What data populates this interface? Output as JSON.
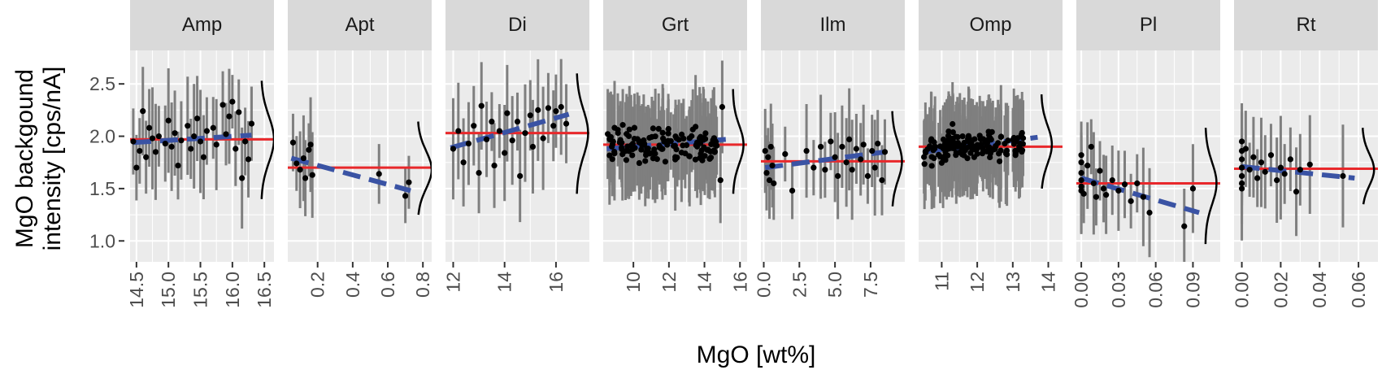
{
  "chart_data": {
    "type": "scatter",
    "ylabel_lines": [
      "MgO backgound",
      "intensity [cps/nA]"
    ],
    "xlabel": "MgO [wt%]",
    "ylim": [
      0.8,
      2.82
    ],
    "yticks": [
      "1.0",
      "1.5",
      "2.0",
      "2.5"
    ],
    "ytick_values": [
      1.0,
      1.5,
      2.0,
      2.5
    ],
    "colors": {
      "points": "#000000",
      "errorbars": "#7f7f7f",
      "mean_line": "#e8282b",
      "trend_line": "#3a53a4",
      "density": "#000000",
      "panel_bg": "#ebebeb",
      "strip_bg": "#d9d9d9",
      "grid": "#ffffff"
    },
    "facets": [
      {
        "name": "Amp",
        "xlim": [
          14.4,
          16.65
        ],
        "xticks": [
          "14.5",
          "15.0",
          "15.5",
          "16.0",
          "16.5"
        ],
        "xtick_values": [
          14.5,
          15.0,
          15.5,
          16.0,
          16.5
        ],
        "mean": 1.97,
        "trend": [
          [
            14.45,
            1.94
          ],
          [
            16.3,
            2.01
          ]
        ],
        "density": {
          "x": 16.45,
          "mu": 1.97,
          "sd": 0.22,
          "w": 0.2,
          "y0": 1.4,
          "y1": 2.53
        },
        "points": [
          [
            14.45,
            1.95
          ],
          [
            14.5,
            1.7
          ],
          [
            14.55,
            1.86
          ],
          [
            14.6,
            2.24
          ],
          [
            14.65,
            1.8
          ],
          [
            14.7,
            2.08
          ],
          [
            14.75,
            1.98
          ],
          [
            14.8,
            1.85
          ],
          [
            14.85,
            2.0
          ],
          [
            14.95,
            1.93
          ],
          [
            15.0,
            2.15
          ],
          [
            15.05,
            1.9
          ],
          [
            15.1,
            2.03
          ],
          [
            15.15,
            1.72
          ],
          [
            15.2,
            1.96
          ],
          [
            15.3,
            2.1
          ],
          [
            15.35,
            1.88
          ],
          [
            15.4,
            2.0
          ],
          [
            15.45,
            2.17
          ],
          [
            15.5,
            1.95
          ],
          [
            15.55,
            1.8
          ],
          [
            15.6,
            2.05
          ],
          [
            15.7,
            2.08
          ],
          [
            15.75,
            1.92
          ],
          [
            15.85,
            2.3
          ],
          [
            15.9,
            2.02
          ],
          [
            15.95,
            2.19
          ],
          [
            16.0,
            2.33
          ],
          [
            16.05,
            1.88
          ],
          [
            16.1,
            2.23
          ],
          [
            16.15,
            1.6
          ],
          [
            16.2,
            1.95
          ],
          [
            16.25,
            1.78
          ],
          [
            16.3,
            2.12
          ]
        ]
      },
      {
        "name": "Apt",
        "xlim": [
          0.03,
          0.85
        ],
        "xticks": [
          "0.2",
          "0.4",
          "0.6",
          "0.8"
        ],
        "xtick_values": [
          0.2,
          0.4,
          0.6,
          0.8
        ],
        "mean": 1.7,
        "trend": [
          [
            0.05,
            1.79
          ],
          [
            0.73,
            1.48
          ]
        ],
        "density": {
          "x": 0.77,
          "mu": 1.68,
          "sd": 0.18,
          "w": 0.08,
          "y0": 1.25,
          "y1": 2.14
        },
        "points": [
          [
            0.06,
            1.94
          ],
          [
            0.08,
            1.74
          ],
          [
            0.1,
            1.68
          ],
          [
            0.12,
            1.79
          ],
          [
            0.13,
            1.6
          ],
          [
            0.15,
            1.87
          ],
          [
            0.16,
            1.92
          ],
          [
            0.17,
            1.63
          ],
          [
            0.55,
            1.64
          ],
          [
            0.7,
            1.43
          ],
          [
            0.72,
            1.56
          ]
        ]
      },
      {
        "name": "Di",
        "xlim": [
          11.7,
          17.3
        ],
        "xticks": [
          "12",
          "14",
          "16"
        ],
        "xtick_values": [
          12,
          14,
          16
        ],
        "mean": 2.03,
        "trend": [
          [
            11.9,
            1.89
          ],
          [
            16.5,
            2.21
          ]
        ],
        "density": {
          "x": 16.8,
          "mu": 2.03,
          "sd": 0.22,
          "w": 0.45,
          "y0": 1.45,
          "y1": 2.6
        },
        "points": [
          [
            12.0,
            1.88
          ],
          [
            12.2,
            2.05
          ],
          [
            12.4,
            1.75
          ],
          [
            12.6,
            1.93
          ],
          [
            12.8,
            2.1
          ],
          [
            13.0,
            1.65
          ],
          [
            13.1,
            2.29
          ],
          [
            13.3,
            1.97
          ],
          [
            13.5,
            2.14
          ],
          [
            13.6,
            1.72
          ],
          [
            13.8,
            2.05
          ],
          [
            14.0,
            1.84
          ],
          [
            14.1,
            2.22
          ],
          [
            14.3,
            1.96
          ],
          [
            14.5,
            2.14
          ],
          [
            14.6,
            1.62
          ],
          [
            14.8,
            2.03
          ],
          [
            15.0,
            2.2
          ],
          [
            15.1,
            1.9
          ],
          [
            15.3,
            2.25
          ],
          [
            15.5,
            1.98
          ],
          [
            15.7,
            2.27
          ],
          [
            15.9,
            2.1
          ],
          [
            16.0,
            2.24
          ],
          [
            16.2,
            2.28
          ],
          [
            16.4,
            2.12
          ]
        ]
      },
      {
        "name": "Grt",
        "xlim": [
          8.3,
          16.4
        ],
        "xticks": [
          "10",
          "12",
          "14",
          "16"
        ],
        "xtick_values": [
          10,
          12,
          14,
          16
        ],
        "mean": 1.92,
        "trend": [
          [
            8.5,
            1.88
          ],
          [
            15.2,
            1.97
          ]
        ],
        "density": {
          "x": 15.6,
          "mu": 1.92,
          "sd": 0.18,
          "w": 0.6,
          "y0": 1.45,
          "y1": 2.45
        },
        "scatter_gen": {
          "n": 130,
          "x0": 8.5,
          "x1": 14.7,
          "mu": 1.92,
          "sd": 0.15,
          "seed": 4
        },
        "points": [
          [
            15.0,
            2.28
          ],
          [
            14.9,
            1.58
          ]
        ]
      },
      {
        "name": "Ilm",
        "xlim": [
          -0.2,
          9.9
        ],
        "xticks": [
          "0.0",
          "2.5",
          "5.0",
          "7.5"
        ],
        "xtick_values": [
          0.0,
          2.5,
          5.0,
          7.5
        ],
        "mean": 1.76,
        "trend": [
          [
            0.1,
            1.7
          ],
          [
            8.5,
            1.85
          ]
        ],
        "density": {
          "x": 9.0,
          "mu": 1.76,
          "sd": 0.18,
          "w": 0.7,
          "y0": 1.33,
          "y1": 2.24
        },
        "points": [
          [
            0.1,
            1.86
          ],
          [
            0.2,
            1.65
          ],
          [
            0.3,
            1.8
          ],
          [
            0.4,
            1.58
          ],
          [
            0.5,
            1.9
          ],
          [
            0.6,
            1.72
          ],
          [
            0.7,
            1.55
          ],
          [
            1.5,
            1.83
          ],
          [
            2.0,
            1.48
          ],
          [
            3.0,
            1.86
          ],
          [
            3.5,
            1.7
          ],
          [
            4.0,
            1.9
          ],
          [
            4.3,
            1.68
          ],
          [
            4.7,
            1.95
          ],
          [
            5.0,
            1.8
          ],
          [
            5.2,
            1.62
          ],
          [
            5.5,
            1.9
          ],
          [
            5.8,
            1.75
          ],
          [
            6.0,
            1.97
          ],
          [
            6.2,
            1.68
          ],
          [
            6.5,
            1.88
          ],
          [
            6.8,
            1.78
          ],
          [
            7.0,
            1.92
          ],
          [
            7.3,
            1.62
          ],
          [
            7.6,
            1.86
          ],
          [
            7.8,
            1.7
          ],
          [
            8.0,
            1.93
          ],
          [
            8.3,
            1.58
          ],
          [
            8.5,
            1.85
          ]
        ]
      },
      {
        "name": "Omp",
        "xlim": [
          10.35,
          14.4
        ],
        "xticks": [
          "11",
          "12",
          "13",
          "14"
        ],
        "xtick_values": [
          11,
          12,
          13,
          14
        ],
        "mean": 1.9,
        "trend": [
          [
            10.5,
            1.85
          ],
          [
            13.7,
            1.99
          ]
        ],
        "density": {
          "x": 13.8,
          "mu": 1.92,
          "sd": 0.18,
          "w": 0.3,
          "y0": 1.5,
          "y1": 2.4
        },
        "scatter_gen": {
          "n": 150,
          "x0": 10.5,
          "x1": 13.3,
          "mu": 1.9,
          "sd": 0.13,
          "seed": 9
        },
        "points": []
      },
      {
        "name": "Pl",
        "xlim": [
          -0.004,
          0.112
        ],
        "xticks": [
          "0.00",
          "0.03",
          "0.06",
          "0.09"
        ],
        "xtick_values": [
          0.0,
          0.03,
          0.06,
          0.09
        ],
        "mean": 1.55,
        "trend": [
          [
            0.0,
            1.6
          ],
          [
            0.095,
            1.27
          ]
        ],
        "density": {
          "x": 0.1,
          "mu": 1.55,
          "sd": 0.2,
          "w": 0.009,
          "y0": 0.97,
          "y1": 2.08
        },
        "points": [
          [
            0.0,
            1.82
          ],
          [
            0.0,
            1.75
          ],
          [
            0.0,
            1.65
          ],
          [
            0.0,
            1.58
          ],
          [
            0.0,
            1.52
          ],
          [
            0.0,
            1.48
          ],
          [
            0.002,
            1.45
          ],
          [
            0.005,
            1.72
          ],
          [
            0.008,
            1.9
          ],
          [
            0.01,
            1.55
          ],
          [
            0.012,
            1.42
          ],
          [
            0.015,
            1.67
          ],
          [
            0.018,
            1.5
          ],
          [
            0.02,
            1.44
          ],
          [
            0.025,
            1.58
          ],
          [
            0.03,
            1.48
          ],
          [
            0.035,
            1.54
          ],
          [
            0.04,
            1.38
          ],
          [
            0.045,
            1.55
          ],
          [
            0.05,
            1.42
          ],
          [
            0.055,
            1.27
          ],
          [
            0.083,
            1.14
          ],
          [
            0.09,
            1.5
          ]
        ]
      },
      {
        "name": "Rt",
        "xlim": [
          -0.004,
          0.07
        ],
        "xticks": [
          "0.00",
          "0.02",
          "0.04",
          "0.06"
        ],
        "xtick_values": [
          0.0,
          0.02,
          0.04,
          0.06
        ],
        "mean": 1.69,
        "trend": [
          [
            0.0,
            1.71
          ],
          [
            0.058,
            1.6
          ]
        ],
        "density": {
          "x": 0.062,
          "mu": 1.68,
          "sd": 0.15,
          "w": 0.006,
          "y0": 1.35,
          "y1": 2.08
        },
        "points": [
          [
            0.0,
            1.95
          ],
          [
            0.0,
            1.86
          ],
          [
            0.0,
            1.78
          ],
          [
            0.0,
            1.7
          ],
          [
            0.0,
            1.62
          ],
          [
            0.0,
            1.55
          ],
          [
            0.0,
            1.5
          ],
          [
            0.002,
            1.88
          ],
          [
            0.004,
            1.68
          ],
          [
            0.006,
            1.8
          ],
          [
            0.008,
            1.6
          ],
          [
            0.01,
            1.75
          ],
          [
            0.012,
            1.66
          ],
          [
            0.015,
            1.82
          ],
          [
            0.018,
            1.58
          ],
          [
            0.02,
            1.7
          ],
          [
            0.022,
            1.64
          ],
          [
            0.025,
            1.78
          ],
          [
            0.028,
            1.47
          ],
          [
            0.03,
            1.68
          ],
          [
            0.035,
            1.73
          ],
          [
            0.052,
            1.62
          ]
        ]
      }
    ]
  }
}
